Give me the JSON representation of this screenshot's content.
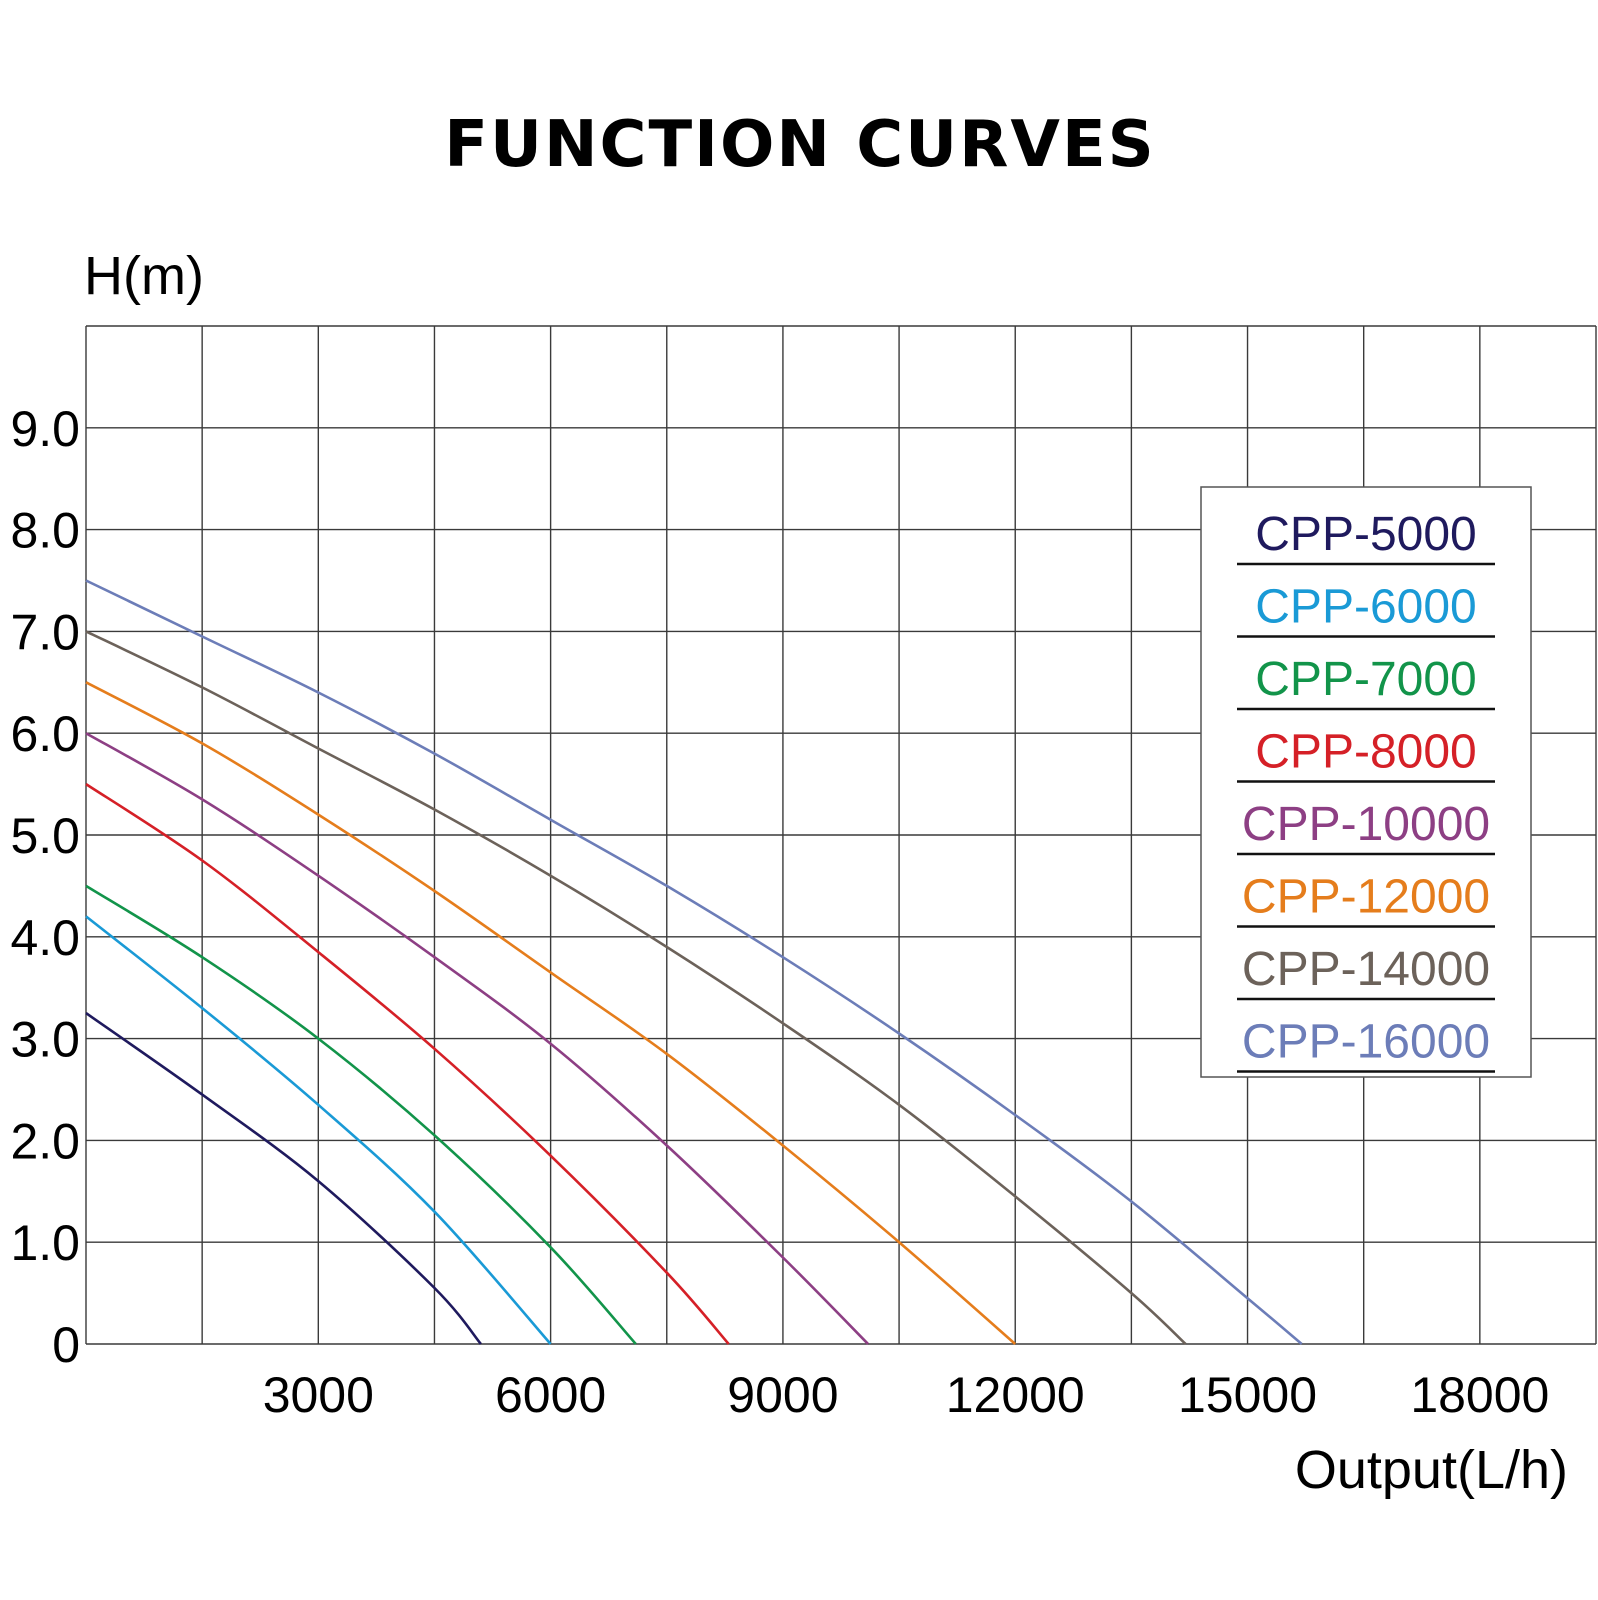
{
  "chart_data": {
    "type": "line",
    "title": "FUNCTION CURVES",
    "ylabel": "H(m)",
    "xlabel": "Output(L/h)",
    "xlim": [
      0,
      19500
    ],
    "ylim": [
      0,
      10
    ],
    "x_ticks": [
      3000,
      6000,
      9000,
      12000,
      15000,
      18000
    ],
    "x_tick_labels": [
      "3000",
      "6000",
      "9000",
      "12000",
      "15000",
      "18000"
    ],
    "y_ticks": [
      0,
      1,
      2,
      3,
      4,
      5,
      6,
      7,
      8,
      9
    ],
    "y_tick_labels": [
      "0",
      "1.0",
      "2.0",
      "3.0",
      "4.0",
      "5.0",
      "6.0",
      "7.0",
      "8.0",
      "9.0"
    ],
    "grid_step_x": 1500,
    "grid_step_y": 1,
    "grid": true,
    "legend_position": "right",
    "series": [
      {
        "name": "CPP-5000",
        "color": "#1f1a5e",
        "x": [
          0,
          1500,
          3000,
          4500,
          5100
        ],
        "y": [
          3.25,
          2.45,
          1.6,
          0.55,
          0
        ]
      },
      {
        "name": "CPP-6000",
        "color": "#1a9ad6",
        "x": [
          0,
          1500,
          3000,
          4500,
          6000
        ],
        "y": [
          4.2,
          3.3,
          2.35,
          1.3,
          0
        ]
      },
      {
        "name": "CPP-7000",
        "color": "#12944a",
        "x": [
          0,
          1500,
          3000,
          4500,
          6000,
          7100
        ],
        "y": [
          4.5,
          3.8,
          3.0,
          2.05,
          0.95,
          0
        ]
      },
      {
        "name": "CPP-8000",
        "color": "#d52027",
        "x": [
          0,
          1500,
          3000,
          4500,
          6000,
          7500,
          8300
        ],
        "y": [
          5.5,
          4.75,
          3.85,
          2.9,
          1.85,
          0.7,
          0
        ]
      },
      {
        "name": "CPP-10000",
        "color": "#8d3f84",
        "x": [
          0,
          1500,
          3000,
          4500,
          6000,
          7500,
          9000,
          10100
        ],
        "y": [
          6.0,
          5.35,
          4.6,
          3.8,
          2.95,
          1.95,
          0.85,
          0
        ]
      },
      {
        "name": "CPP-12000",
        "color": "#e57d1c",
        "x": [
          0,
          1500,
          3000,
          4500,
          6000,
          7500,
          9000,
          10500,
          12000
        ],
        "y": [
          6.5,
          5.9,
          5.2,
          4.45,
          3.65,
          2.85,
          1.95,
          1.0,
          0
        ]
      },
      {
        "name": "CPP-14000",
        "color": "#6c625a",
        "x": [
          0,
          1500,
          3000,
          4500,
          6000,
          7500,
          9000,
          10500,
          12000,
          13500,
          14200
        ],
        "y": [
          7.0,
          6.45,
          5.85,
          5.25,
          4.6,
          3.9,
          3.15,
          2.35,
          1.45,
          0.5,
          0
        ]
      },
      {
        "name": "CPP-16000",
        "color": "#6c7db8",
        "x": [
          0,
          1500,
          3000,
          4500,
          6000,
          7500,
          9000,
          10500,
          12000,
          13500,
          15000,
          15700
        ],
        "y": [
          7.5,
          6.95,
          6.4,
          5.8,
          5.15,
          4.5,
          3.8,
          3.05,
          2.25,
          1.4,
          0.45,
          0
        ]
      }
    ]
  }
}
